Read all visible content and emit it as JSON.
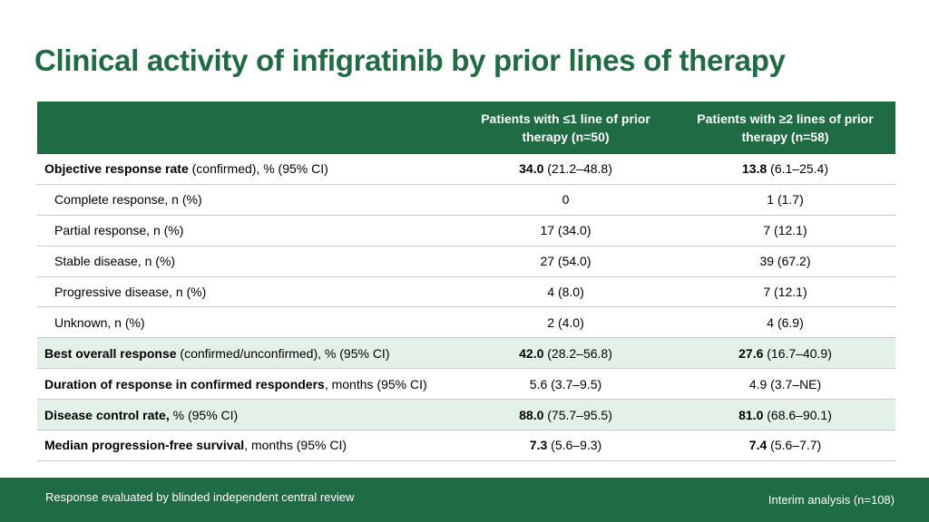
{
  "title": "Clinical activity of infigratinib by prior lines of therapy",
  "table": {
    "headers": [
      "",
      "Patients with ≤1 line of prior therapy (n=50)",
      "Patients with ≥2 lines of prior therapy (n=58)"
    ],
    "rows": [
      {
        "label_bold": "Objective response rate",
        "label_rest": " (confirmed), % (95% CI)",
        "c1_bold": "34.0",
        "c1_rest": " (21.2–48.8)",
        "c2_bold": "13.8",
        "c2_rest": " (6.1–25.4)"
      },
      {
        "label_rest": "Complete response, n (%)",
        "c1_rest": "0",
        "c2_rest": "1 (1.7)"
      },
      {
        "label_rest": "Partial response, n (%)",
        "c1_rest": "17 (34.0)",
        "c2_rest": "7 (12.1)"
      },
      {
        "label_rest": "Stable disease, n (%)",
        "c1_rest": "27 (54.0)",
        "c2_rest": "39 (67.2)"
      },
      {
        "label_rest": "Progressive disease, n (%)",
        "c1_rest": "4 (8.0)",
        "c2_rest": "7 (12.1)"
      },
      {
        "label_rest": "Unknown, n (%)",
        "c1_rest": "2 (4.0)",
        "c2_rest": "4 (6.9)"
      },
      {
        "label_bold": "Best overall response",
        "label_rest": " (confirmed/unconfirmed), % (95% CI)",
        "c1_bold": "42.0",
        "c1_rest": " (28.2–56.8)",
        "c2_bold": "27.6",
        "c2_rest": " (16.7–40.9)"
      },
      {
        "label_bold": "Duration of response in confirmed responders",
        "label_rest": ", months (95% CI)",
        "c1_rest": "5.6 (3.7–9.5)",
        "c2_rest": "4.9 (3.7–NE)"
      },
      {
        "label_bold": "Disease control rate,",
        "label_rest": " % (95% CI)",
        "c1_bold": "88.0",
        "c1_rest": " (75.7–95.5)",
        "c2_bold": "81.0",
        "c2_rest": " (68.6–90.1)"
      },
      {
        "label_bold": "Median progression-free survival",
        "label_rest": ", months (95% CI)",
        "c1_bold": "7.3",
        "c1_rest": " (5.6–9.3)",
        "c2_bold": "7.4",
        "c2_rest": " (5.6–7.7)"
      }
    ]
  },
  "footer": {
    "left": "Response evaluated by blinded independent central review",
    "right": "Interim analysis (n=108)"
  },
  "colors": {
    "brand_green": "#1f6b43",
    "shade_green": "#e3f1e9"
  }
}
